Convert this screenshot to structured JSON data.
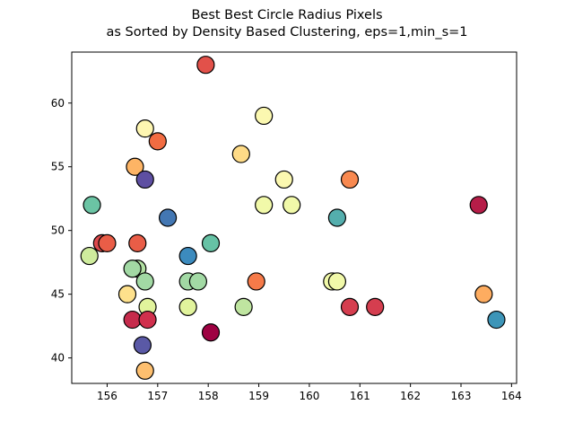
{
  "chart_data": {
    "type": "scatter",
    "title": "Best Best Circle Radius Pixels",
    "subtitle": "as Sorted by Density Based Clustering, eps=1,min_s=1",
    "xlabel": "",
    "ylabel": "",
    "xlim": [
      155.3,
      164.1
    ],
    "ylim": [
      38,
      64
    ],
    "xticks": [
      156,
      157,
      158,
      159,
      160,
      161,
      162,
      163,
      164
    ],
    "yticks": [
      40,
      45,
      50,
      55,
      60
    ],
    "grid": false,
    "points": [
      {
        "x": 157.95,
        "y": 63,
        "color": "#e2514a"
      },
      {
        "x": 159.1,
        "y": 59,
        "color": "#fbf8b0"
      },
      {
        "x": 156.75,
        "y": 58,
        "color": "#fef6b1"
      },
      {
        "x": 157.0,
        "y": 57,
        "color": "#f26c42"
      },
      {
        "x": 158.65,
        "y": 56,
        "color": "#fedb87"
      },
      {
        "x": 156.55,
        "y": 55,
        "color": "#fdb465"
      },
      {
        "x": 159.5,
        "y": 54,
        "color": "#fbf8b0"
      },
      {
        "x": 160.8,
        "y": 54,
        "color": "#f88950"
      },
      {
        "x": 156.75,
        "y": 54,
        "color": "#5e4fa2"
      },
      {
        "x": 159.1,
        "y": 52,
        "color": "#f1f9a9"
      },
      {
        "x": 159.65,
        "y": 52,
        "color": "#f1f9a9"
      },
      {
        "x": 155.7,
        "y": 52,
        "color": "#6bc4a4"
      },
      {
        "x": 163.35,
        "y": 52,
        "color": "#b61d48"
      },
      {
        "x": 157.2,
        "y": 51,
        "color": "#4377b3"
      },
      {
        "x": 160.55,
        "y": 51,
        "color": "#54aead"
      },
      {
        "x": 155.9,
        "y": 49,
        "color": "#dc494c"
      },
      {
        "x": 156.0,
        "y": 49,
        "color": "#e95d47"
      },
      {
        "x": 156.6,
        "y": 49,
        "color": "#e95d47"
      },
      {
        "x": 158.05,
        "y": 49,
        "color": "#66c2a5"
      },
      {
        "x": 157.6,
        "y": 48,
        "color": "#3c8bbe"
      },
      {
        "x": 155.65,
        "y": 48,
        "color": "#cfec9d"
      },
      {
        "x": 156.6,
        "y": 47,
        "color": "#b2e0a2"
      },
      {
        "x": 156.5,
        "y": 47,
        "color": "#a2d9a4"
      },
      {
        "x": 156.75,
        "y": 46,
        "color": "#a2d9a4"
      },
      {
        "x": 157.6,
        "y": 46,
        "color": "#a2d9a4"
      },
      {
        "x": 157.8,
        "y": 46,
        "color": "#a2d9a4"
      },
      {
        "x": 158.95,
        "y": 46,
        "color": "#f67a49"
      },
      {
        "x": 160.45,
        "y": 46,
        "color": "#f1f9a9"
      },
      {
        "x": 160.55,
        "y": 46,
        "color": "#f1f9a9"
      },
      {
        "x": 156.4,
        "y": 45,
        "color": "#fee18c"
      },
      {
        "x": 163.45,
        "y": 45,
        "color": "#fdac60"
      },
      {
        "x": 156.8,
        "y": 44,
        "color": "#e1f39c"
      },
      {
        "x": 157.6,
        "y": 44,
        "color": "#e1f39c"
      },
      {
        "x": 158.7,
        "y": 44,
        "color": "#bfe5a0"
      },
      {
        "x": 160.8,
        "y": 44,
        "color": "#d53e4f"
      },
      {
        "x": 161.3,
        "y": 44,
        "color": "#d53e4f"
      },
      {
        "x": 156.5,
        "y": 43,
        "color": "#c62b4c"
      },
      {
        "x": 156.8,
        "y": 43,
        "color": "#d0304d"
      },
      {
        "x": 163.7,
        "y": 43,
        "color": "#3d95b8"
      },
      {
        "x": 158.05,
        "y": 42,
        "color": "#9e0142"
      },
      {
        "x": 156.7,
        "y": 41,
        "color": "#5a59a6"
      },
      {
        "x": 156.75,
        "y": 39,
        "color": "#fdbf6f"
      }
    ]
  }
}
